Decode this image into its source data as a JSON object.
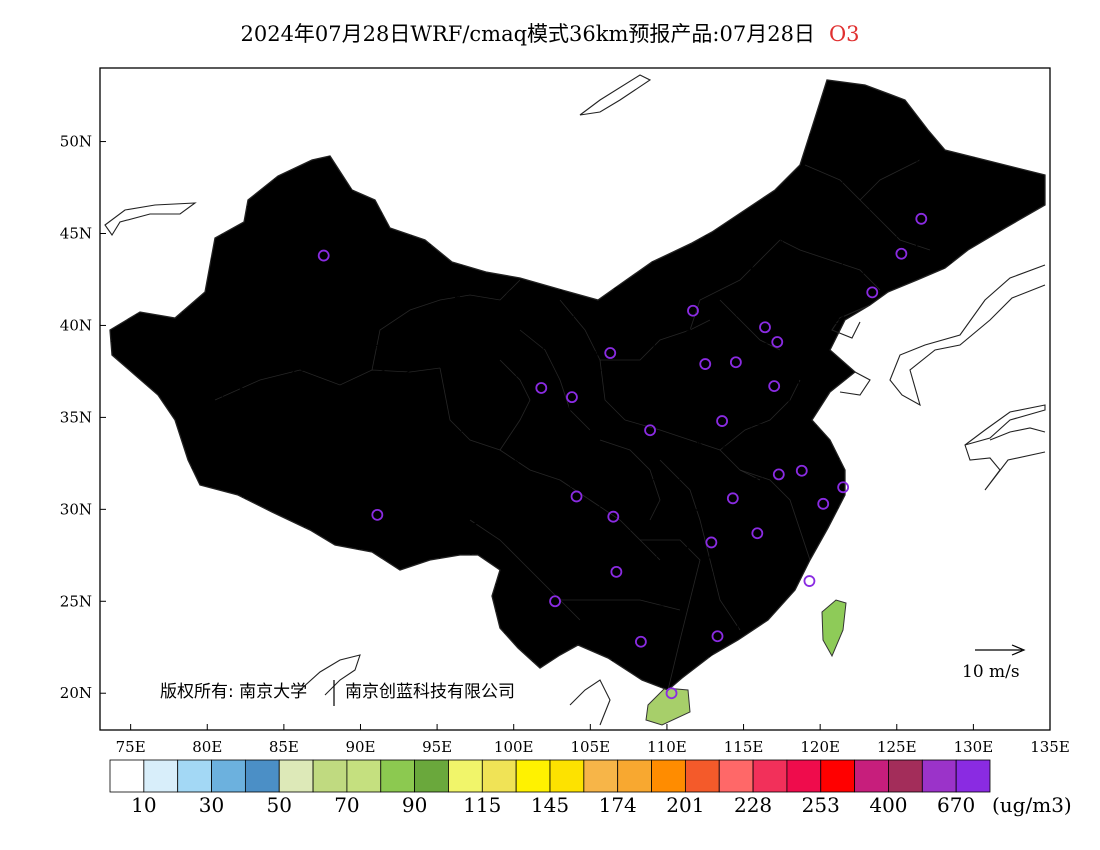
{
  "title": {
    "main": "2024年07月28日WRF/cmaq模式36km预报产品:07月28日",
    "species": "O3"
  },
  "map": {
    "lon_range": [
      73,
      135
    ],
    "lat_range": [
      18,
      54
    ],
    "lon_ticks": [
      "75E",
      "80E",
      "85E",
      "90E",
      "95E",
      "100E",
      "105E",
      "110E",
      "115E",
      "120E",
      "125E",
      "130E",
      "135E"
    ],
    "lat_ticks": [
      "20N",
      "25N",
      "30N",
      "35N",
      "40N",
      "45N",
      "50N"
    ],
    "copyright": "版权所有: 南京大学",
    "copyright2": "南京创蓝科技有限公司",
    "wind_scale_label": "10 m/s"
  },
  "colorbar": {
    "colors": [
      "#ffffff",
      "#d8eefa",
      "#a3d8f5",
      "#6cb1de",
      "#4b8fc6",
      "#dde9b8",
      "#c0da80",
      "#c5e07f",
      "#8cc950",
      "#6aa83c",
      "#f1f56a",
      "#f0e356",
      "#fff200",
      "#fde200",
      "#f7b548",
      "#f8a830",
      "#ff8c00",
      "#f45a2a",
      "#ff6868",
      "#f2305a",
      "#ef0c4c",
      "#ff0000",
      "#c71e7c",
      "#a32d5a",
      "#9b33c9",
      "#8a2be2"
    ],
    "labels": [
      "10",
      "30",
      "50",
      "70",
      "90",
      "115",
      "145",
      "174",
      "201",
      "228",
      "253",
      "400",
      "670"
    ],
    "unit": "(ug/m3)"
  },
  "sites": [
    {
      "lon": 87.6,
      "lat": 43.8
    },
    {
      "lon": 91.1,
      "lat": 29.7
    },
    {
      "lon": 101.8,
      "lat": 36.6
    },
    {
      "lon": 103.8,
      "lat": 36.1
    },
    {
      "lon": 106.3,
      "lat": 38.5
    },
    {
      "lon": 111.7,
      "lat": 40.8
    },
    {
      "lon": 112.5,
      "lat": 37.9
    },
    {
      "lon": 114.5,
      "lat": 38.0
    },
    {
      "lon": 116.4,
      "lat": 39.9
    },
    {
      "lon": 117.2,
      "lat": 39.1
    },
    {
      "lon": 117.0,
      "lat": 36.7
    },
    {
      "lon": 113.6,
      "lat": 34.8
    },
    {
      "lon": 108.9,
      "lat": 34.3
    },
    {
      "lon": 104.1,
      "lat": 30.7
    },
    {
      "lon": 106.5,
      "lat": 29.6
    },
    {
      "lon": 106.7,
      "lat": 26.6
    },
    {
      "lon": 102.7,
      "lat": 25.0
    },
    {
      "lon": 108.3,
      "lat": 22.8
    },
    {
      "lon": 113.3,
      "lat": 23.1
    },
    {
      "lon": 110.3,
      "lat": 20.0
    },
    {
      "lon": 112.9,
      "lat": 28.2
    },
    {
      "lon": 115.9,
      "lat": 28.7
    },
    {
      "lon": 114.3,
      "lat": 30.6
    },
    {
      "lon": 117.3,
      "lat": 31.9
    },
    {
      "lon": 118.8,
      "lat": 32.1
    },
    {
      "lon": 121.5,
      "lat": 31.2
    },
    {
      "lon": 120.2,
      "lat": 30.3
    },
    {
      "lon": 119.3,
      "lat": 26.1
    },
    {
      "lon": 123.4,
      "lat": 41.8
    },
    {
      "lon": 125.3,
      "lat": 43.9
    },
    {
      "lon": 126.6,
      "lat": 45.8
    }
  ]
}
